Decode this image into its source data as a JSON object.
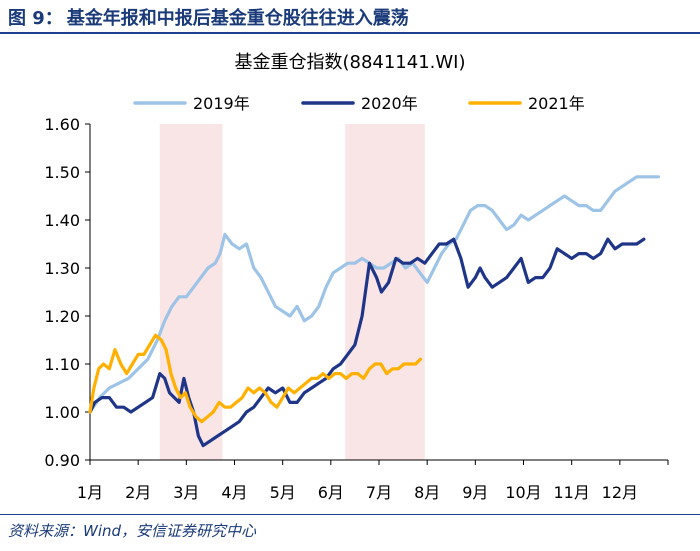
{
  "figure": {
    "label": "图 9：",
    "title": "基金年报和中报后基金重仓股往往进入震荡",
    "source": "资料来源：Wind，安信证券研究中心"
  },
  "colors": {
    "series_2019": "#9dc3e6",
    "series_2020": "#1f3587",
    "series_2021": "#ffb000",
    "highlight": "#f9e5e5",
    "header": "#1a3a7a"
  },
  "chart_data": {
    "type": "line",
    "title": "基金重仓指数(8841141.WI)",
    "xlabel": "",
    "ylabel": "",
    "ylim": [
      0.9,
      1.6
    ],
    "yticks": [
      "1.60",
      "1.50",
      "1.40",
      "1.30",
      "1.20",
      "1.10",
      "1.00",
      "0.90"
    ],
    "ytick_values": [
      1.6,
      1.5,
      1.4,
      1.3,
      1.2,
      1.1,
      1.0,
      0.9
    ],
    "categories": [
      "1月",
      "2月",
      "3月",
      "4月",
      "5月",
      "6月",
      "7月",
      "8月",
      "9月",
      "10月",
      "11月",
      "12月"
    ],
    "x_unit": "month index (1 = 1月, 13 = end of 12月)",
    "xlim": [
      1,
      13
    ],
    "legend_position": "top",
    "shaded_ranges": [
      [
        2.45,
        3.75
      ],
      [
        6.3,
        7.95
      ]
    ],
    "series": [
      {
        "name": "2019年",
        "color_key": "series_2019",
        "x": [
          1.0,
          1.2,
          1.4,
          1.6,
          1.8,
          2.0,
          2.2,
          2.4,
          2.55,
          2.7,
          2.85,
          3.0,
          3.15,
          3.3,
          3.45,
          3.6,
          3.7,
          3.8,
          3.95,
          4.1,
          4.25,
          4.4,
          4.55,
          4.7,
          4.85,
          5.0,
          5.15,
          5.3,
          5.45,
          5.6,
          5.75,
          5.9,
          6.05,
          6.2,
          6.35,
          6.5,
          6.65,
          6.8,
          6.95,
          7.1,
          7.25,
          7.4,
          7.55,
          7.7,
          7.85,
          8.0,
          8.15,
          8.3,
          8.45,
          8.6,
          8.75,
          8.9,
          9.05,
          9.2,
          9.35,
          9.5,
          9.65,
          9.8,
          9.95,
          10.1,
          10.25,
          10.4,
          10.55,
          10.7,
          10.85,
          11.0,
          11.15,
          11.3,
          11.45,
          11.6,
          11.75,
          11.9,
          12.05,
          12.2,
          12.35,
          12.5,
          12.65,
          12.8
        ],
        "values": [
          1.0,
          1.03,
          1.05,
          1.06,
          1.07,
          1.09,
          1.11,
          1.15,
          1.19,
          1.22,
          1.24,
          1.24,
          1.26,
          1.28,
          1.3,
          1.31,
          1.33,
          1.37,
          1.35,
          1.34,
          1.35,
          1.3,
          1.28,
          1.25,
          1.22,
          1.21,
          1.2,
          1.22,
          1.19,
          1.2,
          1.22,
          1.26,
          1.29,
          1.3,
          1.31,
          1.31,
          1.32,
          1.31,
          1.3,
          1.3,
          1.31,
          1.32,
          1.3,
          1.31,
          1.29,
          1.27,
          1.3,
          1.33,
          1.35,
          1.36,
          1.39,
          1.42,
          1.43,
          1.43,
          1.42,
          1.4,
          1.38,
          1.39,
          1.41,
          1.4,
          1.41,
          1.42,
          1.43,
          1.44,
          1.45,
          1.44,
          1.43,
          1.43,
          1.42,
          1.42,
          1.44,
          1.46,
          1.47,
          1.48,
          1.49,
          1.49,
          1.49,
          1.49
        ]
      },
      {
        "name": "2020年",
        "color_key": "series_2020",
        "x": [
          1.0,
          1.1,
          1.25,
          1.4,
          1.55,
          1.7,
          1.85,
          2.0,
          2.15,
          2.3,
          2.45,
          2.55,
          2.65,
          2.75,
          2.85,
          2.95,
          3.05,
          3.15,
          3.25,
          3.35,
          3.5,
          3.65,
          3.8,
          3.95,
          4.1,
          4.25,
          4.4,
          4.55,
          4.7,
          4.85,
          5.0,
          5.15,
          5.3,
          5.45,
          5.6,
          5.75,
          5.9,
          6.05,
          6.2,
          6.35,
          6.5,
          6.65,
          6.8,
          6.95,
          7.05,
          7.2,
          7.35,
          7.5,
          7.65,
          7.8,
          7.95,
          8.1,
          8.25,
          8.4,
          8.55,
          8.7,
          8.85,
          9.0,
          9.1,
          9.2,
          9.35,
          9.5,
          9.65,
          9.8,
          9.95,
          10.1,
          10.25,
          10.4,
          10.55,
          10.7,
          10.85,
          11.0,
          11.15,
          11.3,
          11.45,
          11.6,
          11.75,
          11.9,
          12.05,
          12.2,
          12.35,
          12.5
        ],
        "values": [
          1.0,
          1.02,
          1.03,
          1.03,
          1.01,
          1.01,
          1.0,
          1.01,
          1.02,
          1.03,
          1.08,
          1.07,
          1.04,
          1.03,
          1.02,
          1.07,
          1.03,
          1.0,
          0.95,
          0.93,
          0.94,
          0.95,
          0.96,
          0.97,
          0.98,
          1.0,
          1.01,
          1.03,
          1.05,
          1.04,
          1.05,
          1.02,
          1.02,
          1.04,
          1.05,
          1.06,
          1.07,
          1.09,
          1.1,
          1.12,
          1.14,
          1.2,
          1.31,
          1.28,
          1.25,
          1.27,
          1.32,
          1.31,
          1.31,
          1.32,
          1.31,
          1.33,
          1.35,
          1.35,
          1.36,
          1.32,
          1.26,
          1.28,
          1.3,
          1.28,
          1.26,
          1.27,
          1.28,
          1.3,
          1.32,
          1.27,
          1.28,
          1.28,
          1.3,
          1.34,
          1.33,
          1.32,
          1.33,
          1.33,
          1.32,
          1.33,
          1.36,
          1.34,
          1.35,
          1.35,
          1.35,
          1.36
        ]
      },
      {
        "name": "2021年",
        "color_key": "series_2021",
        "x": [
          1.0,
          1.08,
          1.18,
          1.28,
          1.4,
          1.52,
          1.64,
          1.76,
          1.88,
          2.0,
          2.12,
          2.24,
          2.36,
          2.48,
          2.58,
          2.68,
          2.78,
          2.88,
          2.98,
          3.08,
          3.2,
          3.32,
          3.44,
          3.56,
          3.68,
          3.8,
          3.92,
          4.04,
          4.16,
          4.28,
          4.4,
          4.52,
          4.64,
          4.76,
          4.88,
          5.0,
          5.12,
          5.24,
          5.36,
          5.48,
          5.6,
          5.72,
          5.84,
          5.96,
          6.08,
          6.2,
          6.32,
          6.44,
          6.56,
          6.68,
          6.8,
          6.92,
          7.04,
          7.16,
          7.28,
          7.4,
          7.52,
          7.64,
          7.76,
          7.86
        ],
        "values": [
          1.0,
          1.05,
          1.09,
          1.1,
          1.09,
          1.13,
          1.1,
          1.08,
          1.1,
          1.12,
          1.12,
          1.14,
          1.16,
          1.15,
          1.13,
          1.08,
          1.05,
          1.03,
          1.04,
          1.01,
          0.99,
          0.98,
          0.99,
          1.0,
          1.02,
          1.01,
          1.01,
          1.02,
          1.03,
          1.05,
          1.04,
          1.05,
          1.04,
          1.02,
          1.01,
          1.03,
          1.05,
          1.04,
          1.05,
          1.06,
          1.07,
          1.07,
          1.08,
          1.07,
          1.08,
          1.08,
          1.07,
          1.08,
          1.08,
          1.07,
          1.09,
          1.1,
          1.1,
          1.08,
          1.09,
          1.09,
          1.1,
          1.1,
          1.1,
          1.11
        ]
      }
    ]
  }
}
